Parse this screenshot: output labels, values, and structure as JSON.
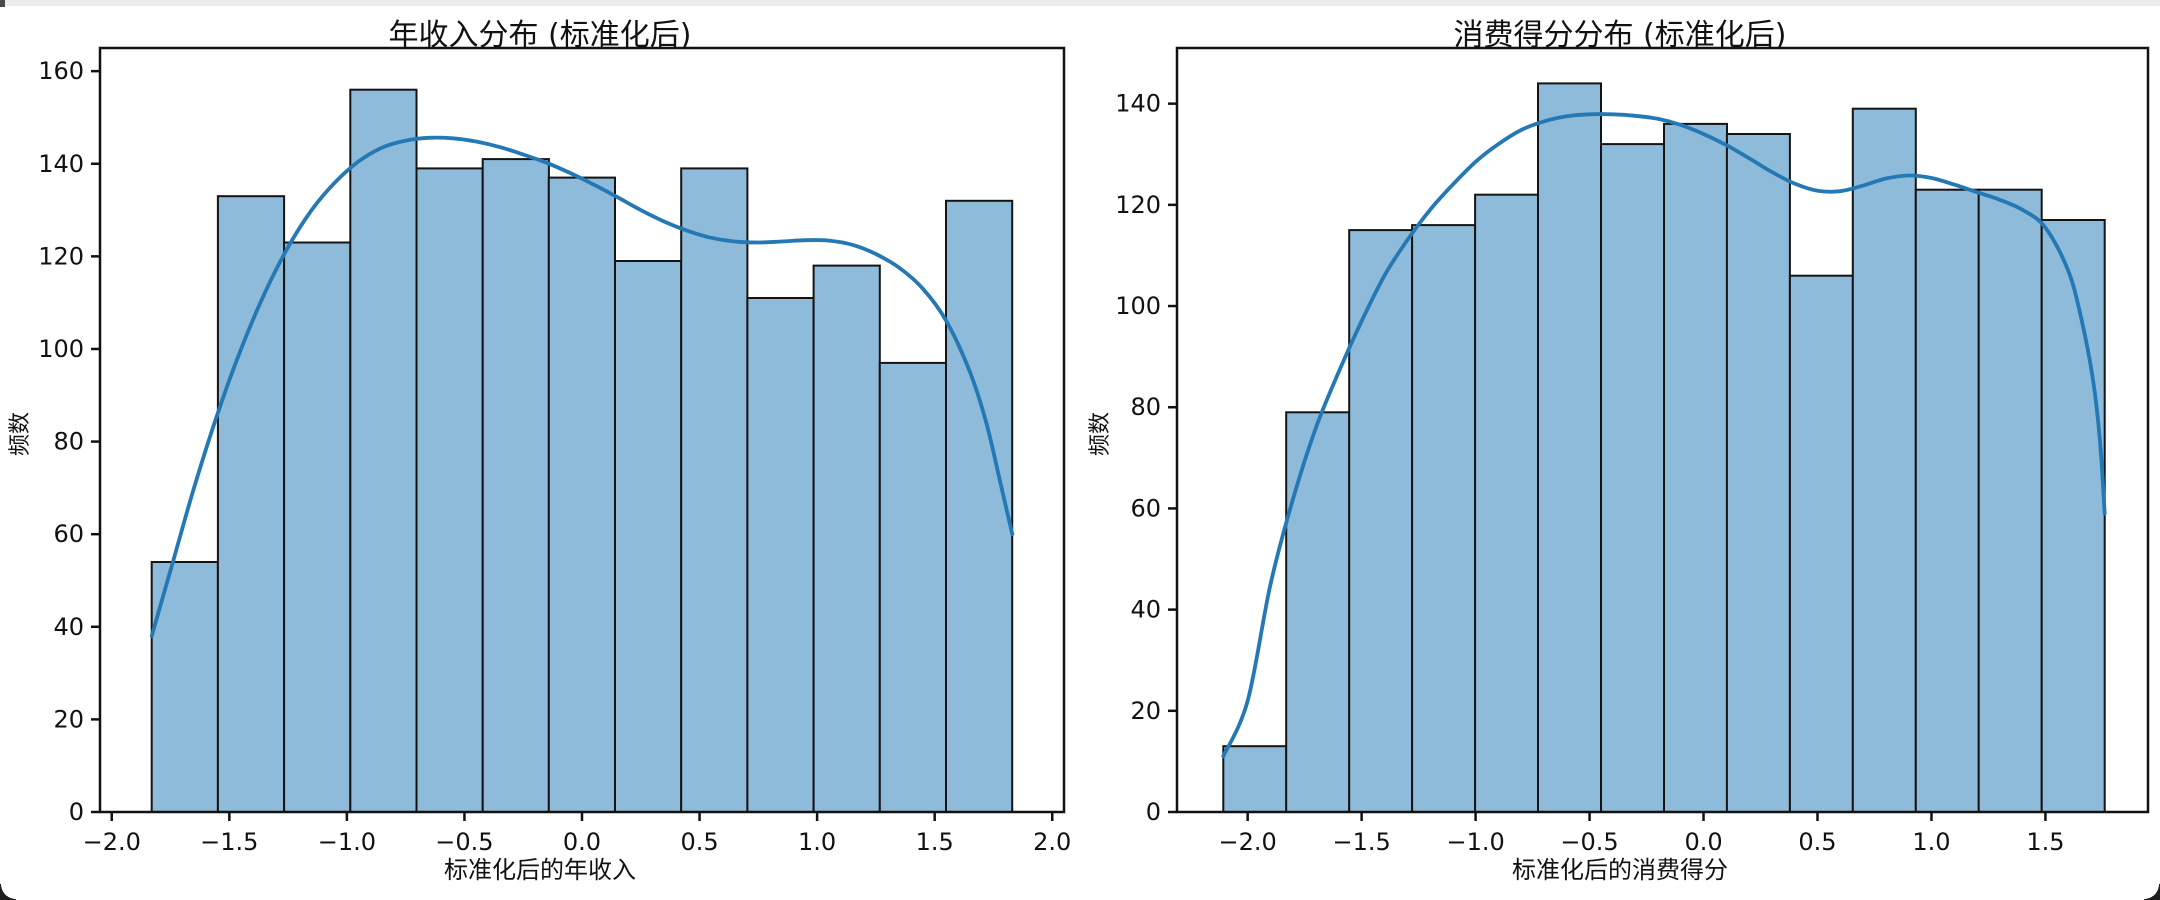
{
  "page": {
    "background": "#ffffff",
    "top_strip_color": "#ededed",
    "corner_color": "#1f1f1f"
  },
  "chart_data": [
    {
      "type": "bar",
      "subtype": "histogram_with_kde",
      "title": "年收入分布 (标准化后)",
      "xlabel": "标准化后的年收入",
      "ylabel": "频数",
      "bar_color": "#8fbbda",
      "bar_edge_color": "#141414",
      "kde_color": "#2478b4",
      "bin_start": -1.83,
      "bin_width": 0.2815,
      "values": [
        54,
        133,
        123,
        156,
        139,
        141,
        137,
        119,
        139,
        111,
        118,
        97,
        132
      ],
      "xlim": [
        -2.05,
        2.05
      ],
      "ylim": [
        0,
        165
      ],
      "xticks": [
        -2.0,
        -1.5,
        -1.0,
        -0.5,
        0.0,
        0.5,
        1.0,
        1.5,
        2.0
      ],
      "yticks": [
        0,
        20,
        40,
        60,
        80,
        100,
        120,
        140,
        160
      ],
      "grid": false,
      "legend": null,
      "kde": [
        [
          -1.83,
          38
        ],
        [
          -1.74,
          54
        ],
        [
          -1.65,
          70
        ],
        [
          -1.55,
          86
        ],
        [
          -1.45,
          100
        ],
        [
          -1.35,
          112
        ],
        [
          -1.25,
          122
        ],
        [
          -1.15,
          130
        ],
        [
          -1.05,
          136
        ],
        [
          -0.95,
          140.5
        ],
        [
          -0.85,
          143.5
        ],
        [
          -0.75,
          145
        ],
        [
          -0.65,
          145.6
        ],
        [
          -0.55,
          145.5
        ],
        [
          -0.45,
          144.8
        ],
        [
          -0.35,
          143.6
        ],
        [
          -0.25,
          142
        ],
        [
          -0.15,
          140.2
        ],
        [
          -0.05,
          138
        ],
        [
          0.05,
          135.5
        ],
        [
          0.15,
          132.8
        ],
        [
          0.25,
          130
        ],
        [
          0.35,
          127.5
        ],
        [
          0.45,
          125.5
        ],
        [
          0.55,
          124
        ],
        [
          0.65,
          123.2
        ],
        [
          0.75,
          123
        ],
        [
          0.85,
          123.2
        ],
        [
          0.95,
          123.5
        ],
        [
          1.05,
          123.4
        ],
        [
          1.15,
          122.5
        ],
        [
          1.25,
          120.5
        ],
        [
          1.35,
          117.5
        ],
        [
          1.45,
          113
        ],
        [
          1.55,
          106
        ],
        [
          1.65,
          95
        ],
        [
          1.72,
          84
        ],
        [
          1.78,
          71
        ],
        [
          1.83,
          60
        ]
      ]
    },
    {
      "type": "bar",
      "subtype": "histogram_with_kde",
      "title": "消费得分分布 (标准化后)",
      "xlabel": "标准化后的消费得分",
      "ylabel": "频数",
      "bar_color": "#8fbbda",
      "bar_edge_color": "#141414",
      "kde_color": "#2478b4",
      "bin_start": -2.107,
      "bin_width": 0.2762,
      "values": [
        13,
        79,
        115,
        116,
        122,
        144,
        132,
        136,
        134,
        106,
        139,
        123,
        123,
        117
      ],
      "xlim": [
        -2.31,
        1.95
      ],
      "ylim": [
        0,
        151
      ],
      "xticks": [
        -2.0,
        -1.5,
        -1.0,
        -0.5,
        0.0,
        0.5,
        1.0,
        1.5
      ],
      "yticks": [
        0,
        20,
        40,
        60,
        80,
        100,
        120,
        140
      ],
      "grid": false,
      "legend": null,
      "kde": [
        [
          -2.107,
          11
        ],
        [
          -2.0,
          22
        ],
        [
          -1.9,
          45
        ],
        [
          -1.8,
          62
        ],
        [
          -1.7,
          76
        ],
        [
          -1.6,
          87
        ],
        [
          -1.5,
          97
        ],
        [
          -1.4,
          106
        ],
        [
          -1.3,
          113
        ],
        [
          -1.2,
          119
        ],
        [
          -1.1,
          124
        ],
        [
          -1.0,
          128.5
        ],
        [
          -0.9,
          132
        ],
        [
          -0.8,
          134.8
        ],
        [
          -0.7,
          136.5
        ],
        [
          -0.6,
          137.5
        ],
        [
          -0.5,
          137.9
        ],
        [
          -0.4,
          137.9
        ],
        [
          -0.3,
          137.6
        ],
        [
          -0.2,
          137
        ],
        [
          -0.1,
          135.8
        ],
        [
          0.0,
          134
        ],
        [
          0.1,
          131.8
        ],
        [
          0.2,
          129.2
        ],
        [
          0.3,
          126.5
        ],
        [
          0.4,
          124.2
        ],
        [
          0.5,
          122.8
        ],
        [
          0.6,
          122.7
        ],
        [
          0.7,
          123.8
        ],
        [
          0.8,
          125.2
        ],
        [
          0.9,
          125.8
        ],
        [
          1.0,
          125.3
        ],
        [
          1.1,
          124
        ],
        [
          1.2,
          122.5
        ],
        [
          1.3,
          121
        ],
        [
          1.4,
          119
        ],
        [
          1.5,
          115.5
        ],
        [
          1.6,
          107
        ],
        [
          1.66,
          97
        ],
        [
          1.71,
          85
        ],
        [
          1.74,
          73
        ],
        [
          1.76,
          59
        ]
      ]
    }
  ]
}
